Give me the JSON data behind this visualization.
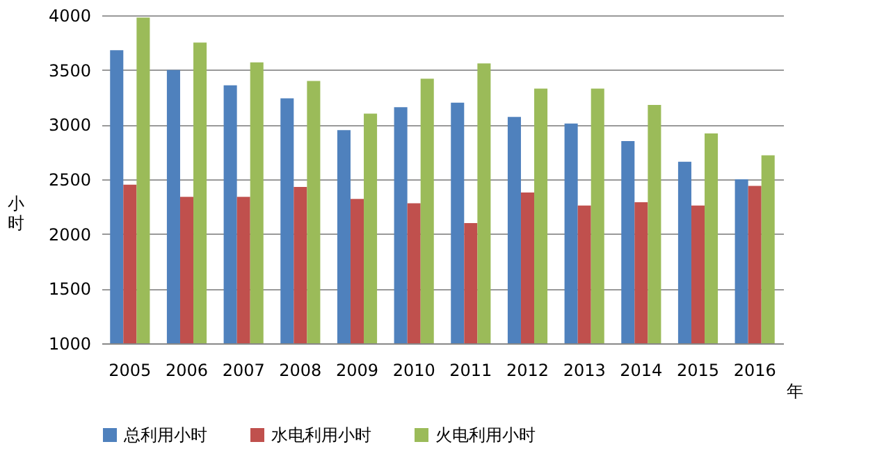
{
  "chart_data": {
    "type": "bar",
    "ylabel": "小时",
    "xlabel": "年",
    "categories": [
      "2005",
      "2006",
      "2007",
      "2008",
      "2009",
      "2010",
      "2011",
      "2012",
      "2013",
      "2014",
      "2015",
      "2016"
    ],
    "series": [
      {
        "name": "总利用小时",
        "color": "#4f81bd",
        "values": [
          3680,
          3500,
          3360,
          3240,
          2950,
          3160,
          3200,
          3070,
          3010,
          2850,
          2660,
          2500
        ]
      },
      {
        "name": "水电利用小时",
        "color": "#c0504d",
        "values": [
          2450,
          2340,
          2340,
          2430,
          2320,
          2280,
          2100,
          2380,
          2260,
          2290,
          2260,
          2440
        ]
      },
      {
        "name": "火电利用小时",
        "color": "#9bbb59",
        "values": [
          3980,
          3750,
          3570,
          3400,
          3100,
          3420,
          3560,
          3330,
          3330,
          3180,
          2920,
          2720
        ]
      }
    ],
    "ylim": [
      1000,
      4000
    ],
    "yticks": [
      1000,
      1500,
      2000,
      2500,
      3000,
      3500,
      4000
    ],
    "grid": "y",
    "legend": "bottom"
  }
}
